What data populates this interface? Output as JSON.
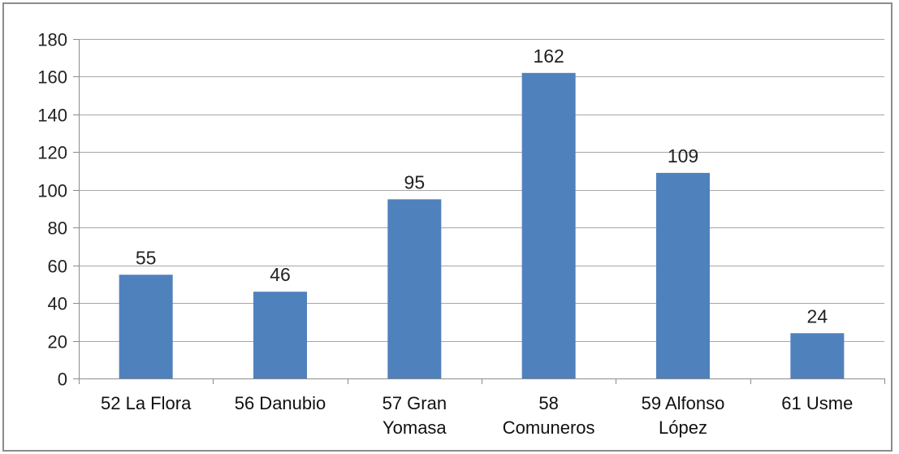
{
  "chart_data": {
    "type": "bar",
    "categories": [
      [
        "52 La Flora"
      ],
      [
        "56 Danubio"
      ],
      [
        "57 Gran",
        "Yomasa"
      ],
      [
        "58",
        "Comuneros"
      ],
      [
        "59 Alfonso",
        "López"
      ],
      [
        "61 Usme"
      ]
    ],
    "values": [
      55,
      46,
      95,
      162,
      109,
      24
    ],
    "data_labels": [
      "55",
      "46",
      "95",
      "162",
      "109",
      "24"
    ],
    "ylim": [
      0,
      180
    ],
    "yticks": [
      0,
      20,
      40,
      60,
      80,
      100,
      120,
      140,
      160,
      180
    ],
    "grid": true,
    "bar_color": "#4f81bd",
    "grid_color": "#a6a6a6",
    "axis_color": "#8c8c8c",
    "title": "",
    "xlabel": "",
    "ylabel": ""
  }
}
